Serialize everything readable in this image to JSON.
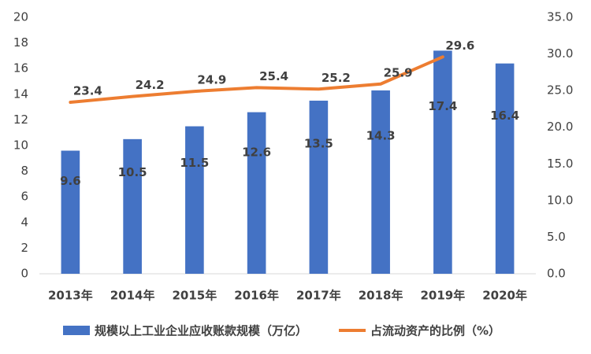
{
  "chart_data": {
    "type": "bar_line",
    "categories": [
      "2013年",
      "2014年",
      "2015年",
      "2016年",
      "2017年",
      "2018年",
      "2019年",
      "2020年"
    ],
    "series": [
      {
        "name": "规模以上工业企业应收账款规模（万亿）",
        "type": "bar",
        "color": "#4472c4",
        "values": [
          9.6,
          10.5,
          11.5,
          12.6,
          13.5,
          14.3,
          17.4,
          16.4
        ]
      },
      {
        "name": "占流动资产的比例（%）",
        "type": "line",
        "axis": "y2",
        "color": "#ed7d31",
        "values": [
          23.4,
          24.2,
          24.9,
          25.4,
          25.2,
          25.9,
          29.6,
          null
        ]
      }
    ],
    "ylim": [
      0,
      20
    ],
    "yticks": [
      0,
      2,
      4,
      6,
      8,
      10,
      12,
      14,
      16,
      18,
      20
    ],
    "y2lim": [
      0,
      35
    ],
    "y2ticks": [
      {
        "value": 0,
        "label": "0.0"
      },
      {
        "value": 5,
        "label": "5.0"
      },
      {
        "value": 10,
        "label": "10.0"
      },
      {
        "value": 15,
        "label": "15.0"
      },
      {
        "value": 20,
        "label": "20.0"
      },
      {
        "value": 25,
        "label": "25.0"
      },
      {
        "value": 30,
        "label": "30.0"
      },
      {
        "value": 35,
        "label": "35.0"
      }
    ],
    "grid": false,
    "legend": "bottom"
  }
}
